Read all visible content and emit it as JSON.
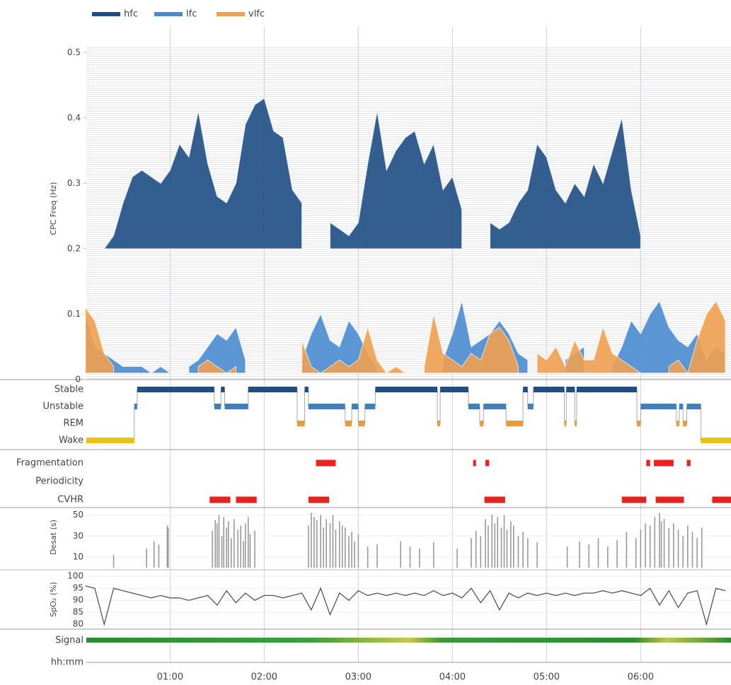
{
  "chart_data": [
    {
      "type": "area",
      "y_label": "CPC Freq (Hz)",
      "ylim": [
        0,
        0.51
      ],
      "yticks": [
        0,
        0.1,
        0.2,
        0.3,
        0.4,
        0.5
      ],
      "x": [
        0.1,
        0.2,
        0.3,
        0.4,
        0.5,
        0.6,
        0.7,
        0.8,
        0.9,
        1.0,
        1.1,
        1.2,
        1.3,
        1.4,
        1.5,
        1.6,
        1.7,
        1.8,
        1.9,
        2.0,
        2.1,
        2.2,
        2.3,
        2.4,
        2.5,
        2.6,
        2.7,
        2.8,
        2.9,
        3.0,
        3.1,
        3.2,
        3.3,
        3.4,
        3.5,
        3.6,
        3.7,
        3.8,
        3.9,
        4.0,
        4.1,
        4.2,
        4.3,
        4.4,
        4.5,
        4.6,
        4.7,
        4.8,
        4.9,
        5.0,
        5.1,
        5.2,
        5.3,
        5.4,
        5.5,
        5.6,
        5.7,
        5.8,
        5.9,
        6.0,
        6.1,
        6.2,
        6.3,
        6.4,
        6.5,
        6.6,
        6.7,
        6.8,
        6.9
      ],
      "series": [
        {
          "name": "hfc",
          "color": "#1f4e85",
          "values": [
            null,
            null,
            0.2,
            0.22,
            0.27,
            0.31,
            0.32,
            0.31,
            0.3,
            0.32,
            0.36,
            0.34,
            0.41,
            0.33,
            0.28,
            0.27,
            0.3,
            0.39,
            0.42,
            0.43,
            0.38,
            0.37,
            0.29,
            0.27,
            null,
            null,
            0.24,
            0.23,
            0.22,
            0.24,
            0.33,
            0.41,
            0.32,
            0.35,
            0.37,
            0.38,
            0.33,
            0.36,
            0.29,
            0.31,
            0.26,
            null,
            null,
            0.24,
            0.23,
            0.24,
            0.27,
            0.29,
            0.36,
            0.34,
            0.29,
            0.27,
            0.3,
            0.28,
            0.33,
            0.3,
            0.35,
            0.4,
            0.29,
            0.22,
            null,
            null,
            null,
            null,
            null,
            null,
            null,
            null,
            null
          ]
        },
        {
          "name": "lfc",
          "color": "#4a8bd0",
          "values": [
            0.1,
            0.05,
            0.04,
            0.03,
            0.02,
            0.02,
            0.02,
            0.01,
            0.02,
            0.01,
            null,
            0.02,
            0.03,
            0.05,
            0.07,
            0.06,
            0.08,
            0.03,
            null,
            null,
            null,
            null,
            null,
            0.03,
            0.07,
            0.1,
            0.06,
            0.05,
            0.09,
            0.07,
            0.04,
            0.02,
            null,
            null,
            null,
            null,
            null,
            null,
            0.03,
            0.07,
            0.12,
            0.05,
            0.06,
            0.07,
            0.09,
            0.07,
            0.04,
            0.03,
            null,
            null,
            null,
            0.03,
            0.04,
            0.05,
            null,
            null,
            0.02,
            0.05,
            0.09,
            0.07,
            0.1,
            0.12,
            0.08,
            0.06,
            0.05,
            0.07,
            0.03,
            0.05,
            0.04
          ]
        },
        {
          "name": "vlfc",
          "color": "#f0a050",
          "values": [
            0.11,
            0.09,
            0.04,
            0.02,
            null,
            null,
            null,
            null,
            null,
            null,
            null,
            null,
            0.02,
            0.03,
            0.02,
            0.01,
            0.02,
            null,
            null,
            null,
            null,
            null,
            null,
            0.06,
            0.02,
            0.01,
            0.02,
            0.03,
            0.02,
            0.03,
            0.08,
            0.03,
            0.01,
            0.02,
            0.01,
            null,
            0.02,
            0.1,
            0.04,
            0.03,
            0.02,
            0.04,
            0.03,
            0.07,
            0.08,
            0.06,
            0.02,
            null,
            0.04,
            0.03,
            0.05,
            0.02,
            0.06,
            0.03,
            0.03,
            0.08,
            0.04,
            0.03,
            0.02,
            0.01,
            null,
            null,
            0.02,
            0.03,
            0.01,
            0.06,
            0.1,
            0.12,
            0.09
          ]
        }
      ]
    },
    {
      "type": "step",
      "categories": [
        "Stable",
        "Unstable",
        "REM",
        "Wake"
      ],
      "colors": [
        "#1f4e85",
        "#3f7fc1",
        "#e99a3f",
        "#f0c010"
      ],
      "segments": [
        {
          "start": 0.11,
          "end": 0.62,
          "stage": "Wake"
        },
        {
          "start": 0.62,
          "end": 0.65,
          "stage": "Unstable"
        },
        {
          "start": 0.65,
          "end": 1.47,
          "stage": "Stable"
        },
        {
          "start": 1.47,
          "end": 1.54,
          "stage": "Unstable"
        },
        {
          "start": 1.54,
          "end": 1.58,
          "stage": "Stable"
        },
        {
          "start": 1.58,
          "end": 1.83,
          "stage": "Unstable"
        },
        {
          "start": 1.83,
          "end": 2.35,
          "stage": "Stable"
        },
        {
          "start": 2.35,
          "end": 2.43,
          "stage": "REM"
        },
        {
          "start": 2.43,
          "end": 2.47,
          "stage": "Stable"
        },
        {
          "start": 2.47,
          "end": 2.86,
          "stage": "Unstable"
        },
        {
          "start": 2.86,
          "end": 2.93,
          "stage": "REM"
        },
        {
          "start": 2.93,
          "end": 3.0,
          "stage": "Unstable"
        },
        {
          "start": 3.0,
          "end": 3.07,
          "stage": "REM"
        },
        {
          "start": 3.07,
          "end": 3.18,
          "stage": "Unstable"
        },
        {
          "start": 3.18,
          "end": 3.84,
          "stage": "Stable"
        },
        {
          "start": 3.84,
          "end": 3.87,
          "stage": "REM"
        },
        {
          "start": 3.87,
          "end": 4.17,
          "stage": "Stable"
        },
        {
          "start": 4.17,
          "end": 4.29,
          "stage": "Unstable"
        },
        {
          "start": 4.29,
          "end": 4.33,
          "stage": "REM"
        },
        {
          "start": 4.33,
          "end": 4.57,
          "stage": "Unstable"
        },
        {
          "start": 4.57,
          "end": 4.75,
          "stage": "REM"
        },
        {
          "start": 4.75,
          "end": 4.8,
          "stage": "Stable"
        },
        {
          "start": 4.8,
          "end": 4.86,
          "stage": "Unstable"
        },
        {
          "start": 4.86,
          "end": 5.19,
          "stage": "Stable"
        },
        {
          "start": 5.19,
          "end": 5.21,
          "stage": "REM"
        },
        {
          "start": 5.21,
          "end": 5.3,
          "stage": "Stable"
        },
        {
          "start": 5.3,
          "end": 5.32,
          "stage": "REM"
        },
        {
          "start": 5.32,
          "end": 5.96,
          "stage": "Stable"
        },
        {
          "start": 5.96,
          "end": 6.0,
          "stage": "REM"
        },
        {
          "start": 6.0,
          "end": 6.38,
          "stage": "Unstable"
        },
        {
          "start": 6.38,
          "end": 6.41,
          "stage": "REM"
        },
        {
          "start": 6.41,
          "end": 6.45,
          "stage": "Unstable"
        },
        {
          "start": 6.45,
          "end": 6.49,
          "stage": "REM"
        },
        {
          "start": 6.49,
          "end": 6.64,
          "stage": "Unstable"
        },
        {
          "start": 6.64,
          "end": 6.96,
          "stage": "Wake"
        }
      ]
    },
    {
      "type": "timeline",
      "categories": [
        "Fragmentation",
        "Periodicity",
        "CVHR"
      ],
      "color": "#e8231f",
      "events": [
        {
          "row": "Fragmentation",
          "start": 2.55,
          "end": 2.76
        },
        {
          "row": "Fragmentation",
          "start": 4.22,
          "end": 4.25
        },
        {
          "row": "Fragmentation",
          "start": 4.35,
          "end": 4.39
        },
        {
          "row": "Fragmentation",
          "start": 6.06,
          "end": 6.1
        },
        {
          "row": "Fragmentation",
          "start": 6.14,
          "end": 6.35
        },
        {
          "row": "Fragmentation",
          "start": 6.49,
          "end": 6.53
        },
        {
          "row": "CVHR",
          "start": 1.42,
          "end": 1.64
        },
        {
          "row": "CVHR",
          "start": 1.7,
          "end": 1.92
        },
        {
          "row": "CVHR",
          "start": 2.47,
          "end": 2.69
        },
        {
          "row": "CVHR",
          "start": 4.34,
          "end": 4.56
        },
        {
          "row": "CVHR",
          "start": 5.8,
          "end": 6.06
        },
        {
          "row": "CVHR",
          "start": 6.16,
          "end": 6.46
        },
        {
          "row": "CVHR",
          "start": 6.76,
          "end": 6.96
        }
      ]
    },
    {
      "type": "bar",
      "y_label": "Desat (s)",
      "color": "#999999",
      "ylim": [
        0,
        57
      ],
      "yticks": [
        10,
        30,
        50
      ],
      "x": [
        0.4,
        0.75,
        0.83,
        0.88,
        0.97,
        0.98,
        1.45,
        1.48,
        1.5,
        1.52,
        1.55,
        1.57,
        1.6,
        1.62,
        1.65,
        1.68,
        1.72,
        1.75,
        1.78,
        1.8,
        1.83,
        1.85,
        1.9,
        2.47,
        2.5,
        2.53,
        2.56,
        2.6,
        2.63,
        2.66,
        2.7,
        2.73,
        2.76,
        2.8,
        2.83,
        2.86,
        2.9,
        2.93,
        2.96,
        3.0,
        3.1,
        3.2,
        3.45,
        3.55,
        3.65,
        3.8,
        4.05,
        4.2,
        4.25,
        4.3,
        4.35,
        4.38,
        4.42,
        4.45,
        4.48,
        4.52,
        4.55,
        4.58,
        4.62,
        4.65,
        4.7,
        4.75,
        4.8,
        4.9,
        5.22,
        5.35,
        5.45,
        5.55,
        5.65,
        5.75,
        5.85,
        5.95,
        6.0,
        6.05,
        6.1,
        6.15,
        6.2,
        6.22,
        6.25,
        6.3,
        6.35,
        6.4,
        6.45,
        6.5,
        6.55,
        6.6,
        6.65
      ],
      "values": [
        12,
        18,
        25,
        22,
        40,
        38,
        35,
        45,
        42,
        50,
        30,
        48,
        38,
        44,
        28,
        46,
        36,
        40,
        25,
        42,
        48,
        32,
        35,
        40,
        52,
        48,
        45,
        50,
        38,
        46,
        42,
        50,
        36,
        44,
        40,
        38,
        30,
        34,
        25,
        32,
        20,
        22,
        25,
        20,
        18,
        24,
        18,
        28,
        35,
        30,
        46,
        40,
        50,
        42,
        48,
        38,
        50,
        36,
        44,
        40,
        30,
        34,
        28,
        24,
        20,
        25,
        22,
        28,
        20,
        26,
        34,
        28,
        36,
        42,
        40,
        48,
        52,
        44,
        46,
        38,
        42,
        36,
        30,
        40,
        34,
        28,
        38
      ]
    },
    {
      "type": "line",
      "y_label": "SpO₂ (%)",
      "color": "#555555",
      "ylim": [
        78,
        103
      ],
      "yticks": [
        80,
        85,
        90,
        95,
        100
      ],
      "x": [
        0.1,
        0.2,
        0.3,
        0.4,
        0.5,
        0.6,
        0.7,
        0.8,
        0.9,
        1.0,
        1.1,
        1.2,
        1.3,
        1.4,
        1.5,
        1.6,
        1.7,
        1.8,
        1.9,
        2.0,
        2.1,
        2.2,
        2.3,
        2.4,
        2.5,
        2.6,
        2.7,
        2.8,
        2.9,
        3.0,
        3.1,
        3.2,
        3.3,
        3.4,
        3.5,
        3.6,
        3.7,
        3.8,
        3.9,
        4.0,
        4.1,
        4.2,
        4.3,
        4.4,
        4.5,
        4.6,
        4.7,
        4.8,
        4.9,
        5.0,
        5.1,
        5.2,
        5.3,
        5.4,
        5.5,
        5.6,
        5.7,
        5.8,
        5.9,
        6.0,
        6.1,
        6.2,
        6.3,
        6.4,
        6.5,
        6.6,
        6.7,
        6.8,
        6.9
      ],
      "values": [
        96,
        95,
        80,
        95,
        94,
        93,
        92,
        91,
        92,
        91,
        91,
        90,
        91,
        92,
        88,
        94,
        89,
        93,
        90,
        92,
        92,
        91,
        92,
        93,
        86,
        95,
        84,
        93,
        90,
        94,
        92,
        93,
        92,
        93,
        92,
        93,
        92,
        94,
        92,
        93,
        91,
        95,
        89,
        94,
        86,
        93,
        91,
        93,
        92,
        93,
        92,
        93,
        92,
        93,
        93,
        94,
        93,
        94,
        93,
        92,
        95,
        88,
        94,
        87,
        93,
        94,
        80,
        95,
        94
      ]
    },
    {
      "type": "time-axis",
      "signal_label": "Signal",
      "x_label": "hh:mm",
      "xlim": [
        0.11,
        6.96
      ],
      "xticks": [
        {
          "value": 1,
          "label": "01:00"
        },
        {
          "value": 2,
          "label": "02:00"
        },
        {
          "value": 3,
          "label": "03:00"
        },
        {
          "value": 4,
          "label": "04:00"
        },
        {
          "value": 5,
          "label": "05:00"
        },
        {
          "value": 6,
          "label": "06:00"
        }
      ]
    }
  ]
}
